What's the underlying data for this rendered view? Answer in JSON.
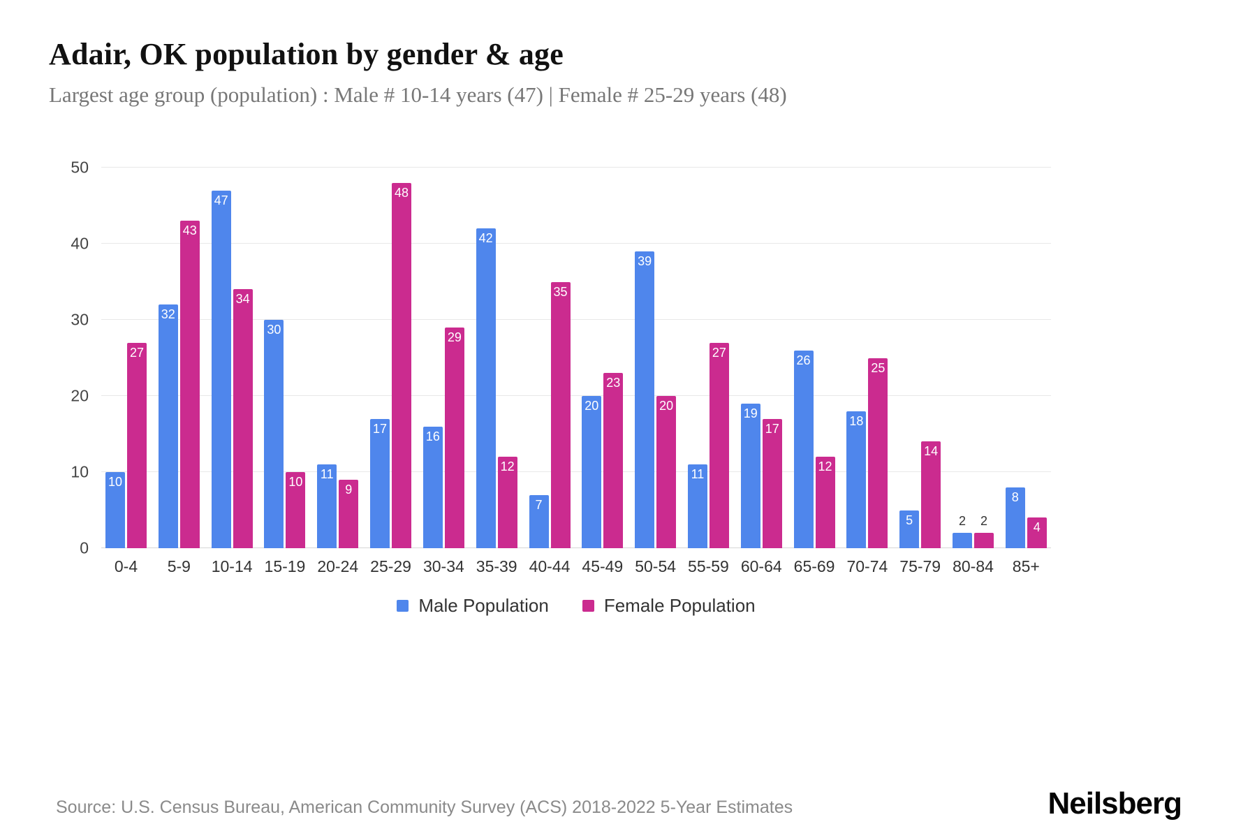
{
  "header": {
    "title": "Adair, OK population by gender & age",
    "subtitle": "Largest age group (population) : Male # 10-14 years (47) | Female # 25-29 years (48)"
  },
  "chart_data": {
    "type": "bar",
    "title": "Adair, OK population by gender & age",
    "categories": [
      "0-4",
      "5-9",
      "10-14",
      "15-19",
      "20-24",
      "25-29",
      "30-34",
      "35-39",
      "40-44",
      "45-49",
      "50-54",
      "55-59",
      "60-64",
      "65-69",
      "70-74",
      "75-79",
      "80-84",
      "85+"
    ],
    "series": [
      {
        "name": "Male Population",
        "color": "#4f86ec",
        "values": [
          10,
          32,
          47,
          30,
          11,
          17,
          16,
          42,
          7,
          20,
          39,
          11,
          19,
          26,
          18,
          5,
          2,
          8
        ]
      },
      {
        "name": "Female Population",
        "color": "#cb2b8f",
        "values": [
          27,
          43,
          34,
          10,
          9,
          48,
          29,
          12,
          35,
          23,
          20,
          27,
          17,
          12,
          25,
          14,
          2,
          4
        ]
      }
    ],
    "xlabel": "",
    "ylabel": "",
    "ylim": [
      0,
      50
    ],
    "yticks": [
      0,
      10,
      20,
      30,
      40,
      50
    ],
    "grid": "horizontal",
    "legend_position": "bottom",
    "value_label_placement": "inside-top-white, outside-dark-when-short"
  },
  "footer": {
    "source": "Source: U.S. Census Bureau, American Community Survey (ACS) 2018-2022 5-Year Estimates",
    "brand": "Neilsberg"
  }
}
